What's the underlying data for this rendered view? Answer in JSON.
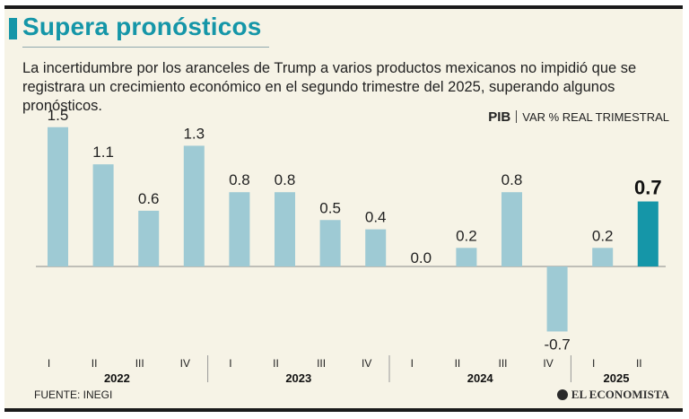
{
  "header": {
    "title": "Supera pronósticos",
    "subtitle": "La incertidumbre por los aranceles de Trump a varios productos mexicanos no impidió que se registrara un crecimiento económico en el segundo trimestre del 2025, superando algunos pronósticos."
  },
  "measure": {
    "name": "PIB",
    "unit": "VAR % REAL TRIMESTRAL"
  },
  "footer": {
    "source": "FUENTE: INEGI",
    "brand": "EL ECONOMISTA"
  },
  "colors": {
    "bar": "#9ecad4",
    "bar_highlight": "#1596a8",
    "title": "#1596a8",
    "background": "#f6f3e6"
  },
  "chart_data": {
    "type": "bar",
    "categories": [
      "I",
      "II",
      "III",
      "IV",
      "I",
      "II",
      "III",
      "IV",
      "I",
      "II",
      "III",
      "IV",
      "I",
      "II"
    ],
    "groups": [
      {
        "label": "2022",
        "count": 4
      },
      {
        "label": "2023",
        "count": 4
      },
      {
        "label": "2024",
        "count": 4
      },
      {
        "label": "2025",
        "count": 2
      }
    ],
    "values": [
      1.5,
      1.1,
      0.6,
      1.3,
      0.8,
      0.8,
      0.5,
      0.4,
      0.0,
      0.2,
      0.8,
      -0.7,
      0.2,
      0.7
    ],
    "value_labels": [
      "1.5",
      "1.1",
      "0.6",
      "1.3",
      "0.8",
      "0.8",
      "0.5",
      "0.4",
      "0.0",
      "0.2",
      "0.8",
      "-0.7",
      "0.2",
      "0.7"
    ],
    "highlight_index": 13,
    "ylim": [
      -0.7,
      1.5
    ],
    "grid": false,
    "xlabel": "",
    "ylabel": ""
  }
}
